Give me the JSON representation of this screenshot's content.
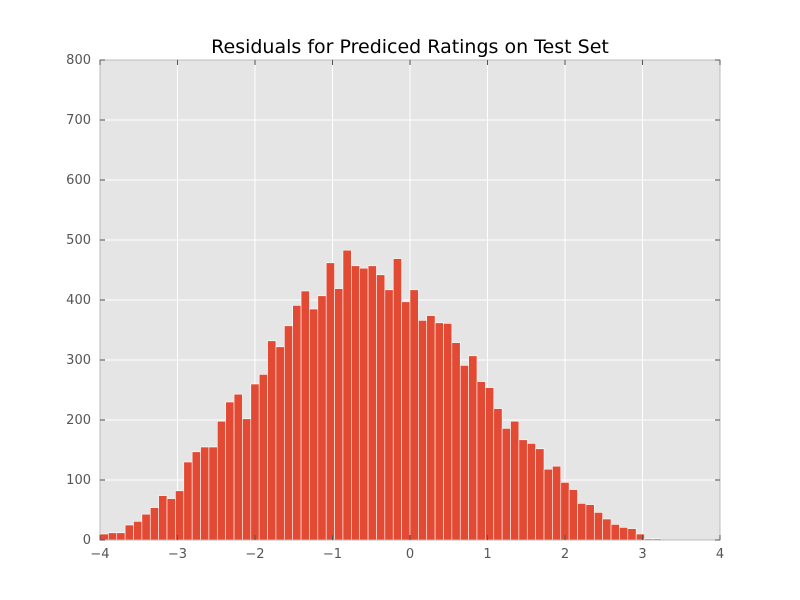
{
  "chart_data": {
    "type": "bar",
    "title": "Residuals for Prediced Ratings on Test Set",
    "xlabel": "",
    "ylabel": "",
    "xlim": [
      -4,
      4
    ],
    "ylim": [
      0,
      800
    ],
    "grid": true,
    "legend": "none",
    "x_ticks": [
      -4,
      -3,
      -2,
      -1,
      0,
      1,
      2,
      3,
      4
    ],
    "x_tick_labels": [
      "−4",
      "−3",
      "−2",
      "−1",
      "0",
      "1",
      "2",
      "3",
      "4"
    ],
    "y_ticks": [
      0,
      100,
      200,
      300,
      400,
      500,
      600,
      700,
      800
    ],
    "y_tick_labels": [
      "0",
      "100",
      "200",
      "300",
      "400",
      "500",
      "600",
      "700",
      "800"
    ],
    "bin_start": -4,
    "bin_width": 0.1081,
    "values": [
      10,
      12,
      12,
      25,
      31,
      43,
      54,
      74,
      69,
      82,
      130,
      147,
      155,
      155,
      198,
      230,
      243,
      202,
      260,
      276,
      332,
      322,
      357,
      391,
      415,
      385,
      407,
      462,
      419,
      483,
      457,
      453,
      457,
      442,
      417,
      469,
      397,
      417,
      366,
      374,
      362,
      361,
      329,
      291,
      307,
      264,
      254,
      219,
      186,
      198,
      167,
      161,
      152,
      118,
      123,
      96,
      84,
      61,
      59,
      46,
      35,
      26,
      21,
      19,
      10,
      2,
      2
    ],
    "colors": {
      "bar": "#e24a33",
      "bar_edge": "#ffffff",
      "plot_background": "#e5e5e5",
      "grid": "#ffffff",
      "axis_edge": "#bcbcbc",
      "tick_label": "#555555",
      "title": "#000000"
    }
  }
}
